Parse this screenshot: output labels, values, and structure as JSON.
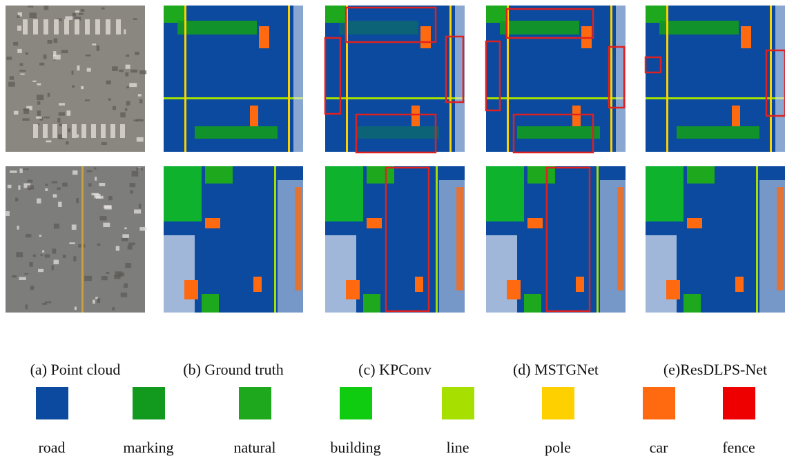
{
  "captions": [
    "(a) Point cloud",
    "(b) Ground truth",
    "(c) KPConv",
    "(d) MSTGNet",
    "(e)ResDLPS-Net"
  ],
  "legend": [
    {
      "label": "road",
      "color": "#0b4a9e"
    },
    {
      "label": "marking",
      "color": "#129a1e"
    },
    {
      "label": "natural",
      "color": "#1ea81e"
    },
    {
      "label": "building",
      "color": "#10cc10"
    },
    {
      "label": "line",
      "color": "#a6df00"
    },
    {
      "label": "pole",
      "color": "#ffd000"
    },
    {
      "label": "car",
      "color": "#ff6a10"
    },
    {
      "label": "fence",
      "color": "#ee0000"
    }
  ]
}
